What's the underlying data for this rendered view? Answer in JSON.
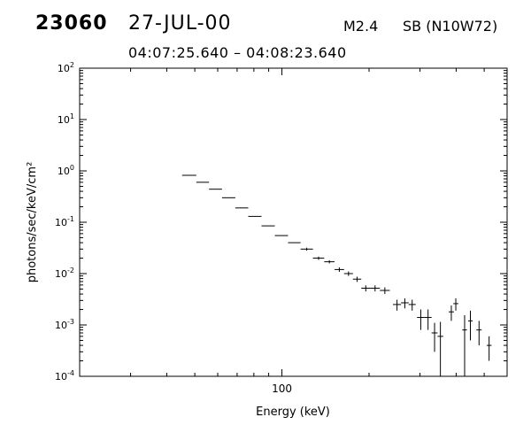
{
  "header": {
    "event_id": "23060",
    "date": "27-JUL-00",
    "flare_class": "M2.4",
    "location": "SB (N10W72)",
    "time_range": "04:07:25.640 – 04:08:23.640"
  },
  "chart_data": {
    "type": "scatter",
    "title": "",
    "xlabel": "Energy (keV)",
    "ylabel": "photons/sec/keV/cm²",
    "xscale": "log",
    "yscale": "log",
    "xlim": [
      20,
      600
    ],
    "ylim": [
      0.0001,
      100
    ],
    "x_tick_labels": [
      {
        "value": 100,
        "label": "100"
      }
    ],
    "y_tick_labels": [
      {
        "value": 0.0001,
        "base": "10",
        "exp": "-4"
      },
      {
        "value": 0.001,
        "base": "10",
        "exp": "-3"
      },
      {
        "value": 0.01,
        "base": "10",
        "exp": "-2"
      },
      {
        "value": 0.1,
        "base": "10",
        "exp": "-1"
      },
      {
        "value": 1,
        "base": "10",
        "exp": "0"
      },
      {
        "value": 10,
        "base": "10",
        "exp": "1"
      },
      {
        "value": 100,
        "base": "10",
        "exp": "2"
      }
    ],
    "grid": false,
    "legend": "none",
    "points": [
      {
        "x0": 45.2,
        "x1": 50.6,
        "y": 0.82
      },
      {
        "x0": 50.6,
        "x1": 56.0,
        "y": 0.6
      },
      {
        "x0": 56.0,
        "x1": 62.1,
        "y": 0.44
      },
      {
        "x0": 62.1,
        "x1": 69.0,
        "y": 0.3
      },
      {
        "x0": 69.0,
        "x1": 76.5,
        "y": 0.19
      },
      {
        "x0": 76.5,
        "x1": 85.0,
        "y": 0.13
      },
      {
        "x0": 85.0,
        "x1": 94.5,
        "y": 0.085
      },
      {
        "x0": 94.5,
        "x1": 105.0,
        "y": 0.055
      },
      {
        "x0": 105.0,
        "x1": 116.0,
        "y": 0.04
      },
      {
        "x0": 116.0,
        "x1": 128.0,
        "y": 0.03,
        "yerr": 0.002
      },
      {
        "x0": 128.0,
        "x1": 140.0,
        "y": 0.02,
        "yerr": 0.0015
      },
      {
        "x0": 140.0,
        "x1": 152.0,
        "y": 0.017,
        "yerr": 0.0012
      },
      {
        "x0": 152.0,
        "x1": 164.0,
        "y": 0.012,
        "yerr": 0.0012
      },
      {
        "x0": 164.0,
        "x1": 176.0,
        "y": 0.01,
        "yerr": 0.001
      },
      {
        "x0": 176.0,
        "x1": 188.0,
        "y": 0.0078,
        "yerr": 0.0009
      },
      {
        "x0": 188.0,
        "x1": 202.0,
        "y": 0.0052,
        "yerr": 0.0007
      },
      {
        "x0": 202.0,
        "x1": 218.0,
        "y": 0.0052,
        "yerr": 0.0007
      },
      {
        "x0": 218.0,
        "x1": 236.0,
        "y": 0.0047,
        "yerr": 0.0007
      },
      {
        "x0": 242.0,
        "x1": 258.0,
        "y": 0.0025,
        "yerr": 0.0006
      },
      {
        "x0": 258.0,
        "x1": 274.0,
        "y": 0.0027,
        "yerr": 0.0006
      },
      {
        "x0": 274.0,
        "x1": 290.0,
        "y": 0.0025,
        "yerr": 0.0006
      },
      {
        "x0": 293.0,
        "x1": 311.0,
        "y": 0.0014,
        "yerr": 0.0006
      },
      {
        "x0": 311.0,
        "x1": 329.0,
        "y": 0.0014,
        "yerr": 0.0006
      },
      {
        "x0": 329.0,
        "x1": 345.0,
        "y": 0.0007,
        "yerr": 0.0004
      },
      {
        "x0": 345.0,
        "x1": 361.0,
        "y": 0.0006,
        "yerr": 0.00055
      },
      {
        "x0": 377.0,
        "x1": 393.0,
        "y": 0.0018,
        "yerr": 0.0006
      },
      {
        "x0": 391.0,
        "x1": 407.0,
        "y": 0.0026,
        "yerr": 0.0007
      },
      {
        "x0": 420.0,
        "x1": 436.0,
        "y": 0.0008,
        "yerr": 0.00075
      },
      {
        "x0": 440.0,
        "x1": 456.0,
        "y": 0.0012,
        "yerr": 0.0007
      },
      {
        "x0": 470.0,
        "x1": 490.0,
        "y": 0.0008,
        "yerr": 0.0004
      },
      {
        "x0": 510.0,
        "x1": 530.0,
        "y": 0.0004,
        "yerr": 0.0002
      }
    ]
  }
}
